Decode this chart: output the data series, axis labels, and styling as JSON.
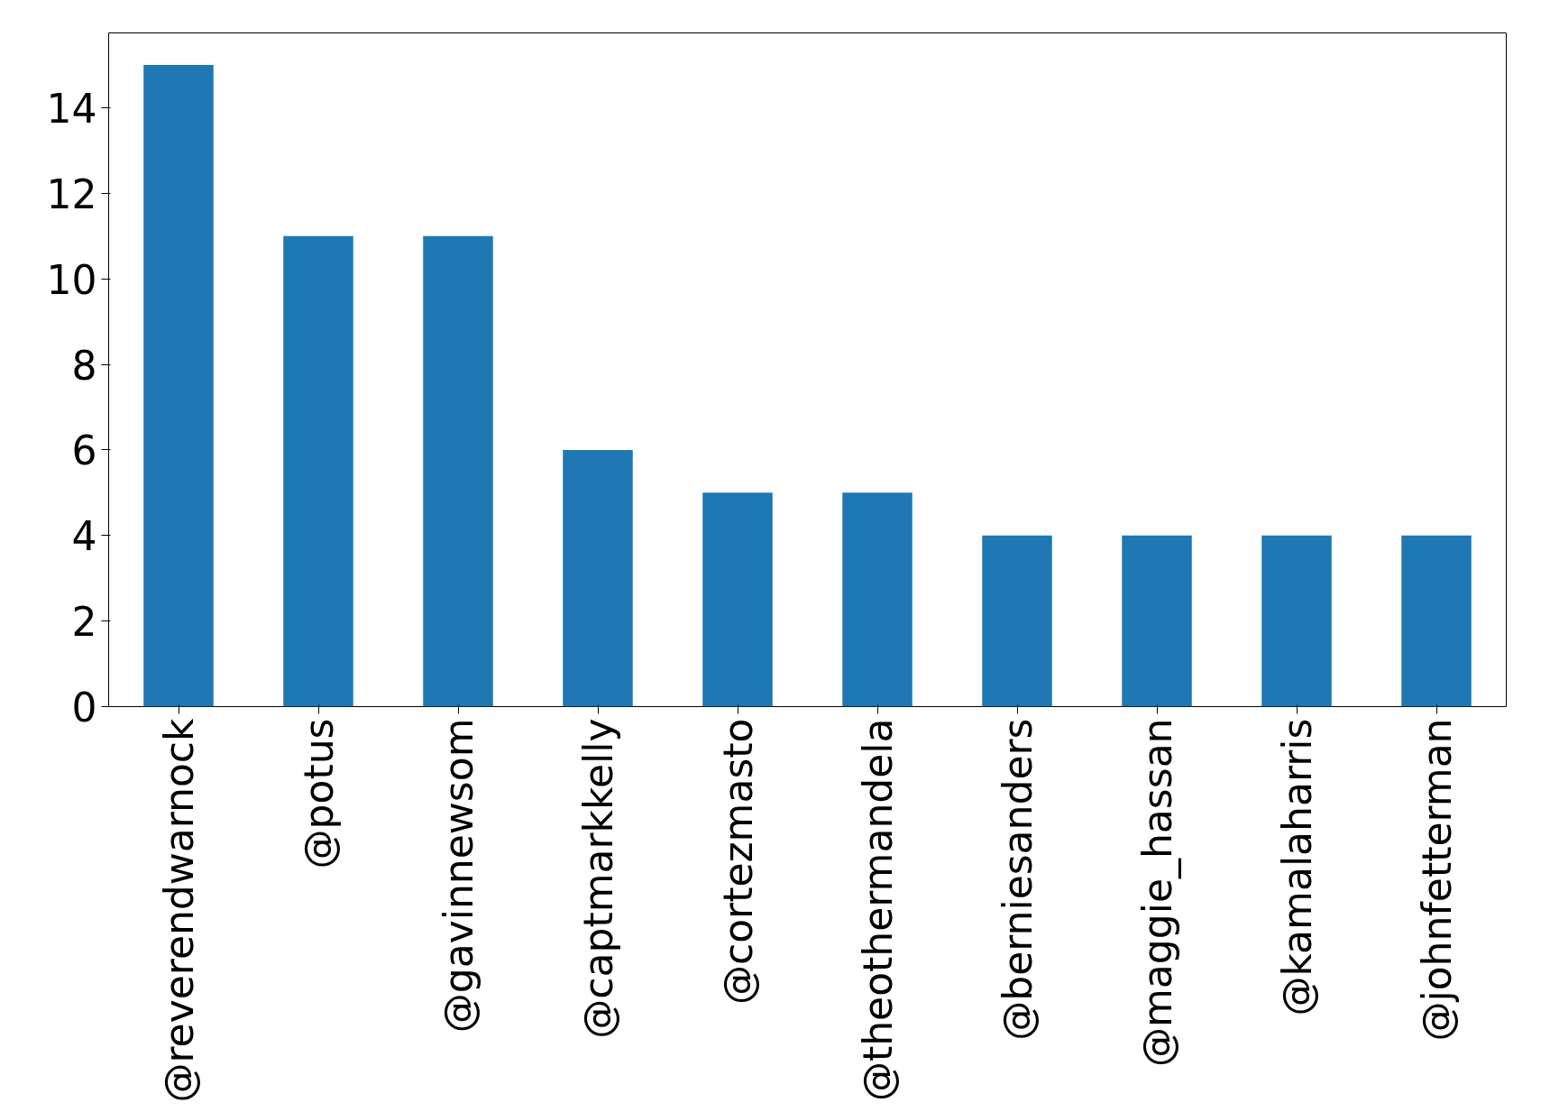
{
  "chart_data": {
    "type": "bar",
    "categories": [
      "@reverendwarnock",
      "@potus",
      "@gavinnewsom",
      "@captmarkkelly",
      "@cortezmasto",
      "@theothermandela",
      "@berniesanders",
      "@maggie_hassan",
      "@kamalaharris",
      "@johnfetterman"
    ],
    "values": [
      15,
      11,
      11,
      6,
      5,
      5,
      4,
      4,
      4,
      4
    ],
    "color": "#1f77b4",
    "ylim": [
      0,
      15.75
    ],
    "yticks": [
      0,
      2,
      4,
      6,
      8,
      10,
      12,
      14
    ],
    "grid": false
  }
}
